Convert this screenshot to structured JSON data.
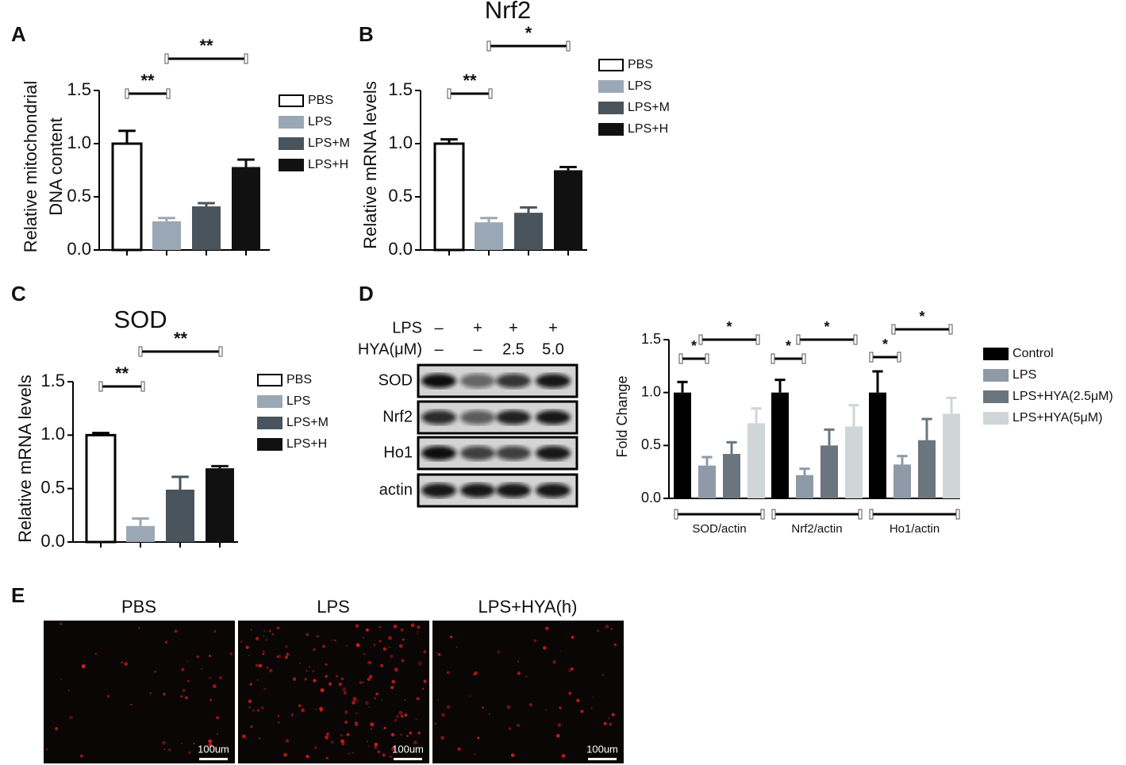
{
  "chart_data": [
    {
      "type": "bar",
      "panel": "A",
      "ylabel": [
        "Relative mitochondrial",
        "DNA content"
      ],
      "categories": [
        null
      ],
      "series": [
        {
          "name": "PBS",
          "color": "#ffffff",
          "values": [
            1.0
          ],
          "errors": [
            0.12
          ]
        },
        {
          "name": "LPS",
          "color": "#9aa8b5",
          "values": [
            0.27
          ],
          "errors": [
            0.03
          ]
        },
        {
          "name": "LPS+M",
          "color": "#4a545c",
          "values": [
            0.41
          ],
          "errors": [
            0.03
          ]
        },
        {
          "name": "LPS+H",
          "color": "#111111",
          "values": [
            0.78
          ],
          "errors": [
            0.07
          ]
        }
      ],
      "ylim": [
        0,
        1.5
      ],
      "yticks": [
        {
          "value": 0,
          "label": "0.0"
        },
        0.5,
        {
          "value": 1,
          "label": "1.0"
        },
        1.5
      ],
      "annotations": [
        "**",
        "**"
      ]
    },
    {
      "type": "bar",
      "panel": "B",
      "title": "Nrf2",
      "ylabel": [
        "Relative mRNA levels"
      ],
      "categories": [
        null
      ],
      "series": [
        {
          "name": "PBS",
          "color": "#ffffff",
          "values": [
            1.0
          ],
          "errors": [
            0.04
          ]
        },
        {
          "name": "LPS",
          "color": "#9aa8b5",
          "values": [
            0.26
          ],
          "errors": [
            0.04
          ]
        },
        {
          "name": "LPS+M",
          "color": "#4a545c",
          "values": [
            0.35
          ],
          "errors": [
            0.05
          ]
        },
        {
          "name": "LPS+H",
          "color": "#111111",
          "values": [
            0.75
          ],
          "errors": [
            0.03
          ]
        }
      ],
      "ylim": [
        0,
        1.5
      ],
      "yticks": [
        {
          "value": 0,
          "label": "0.0"
        },
        0.5,
        {
          "value": 1,
          "label": "1.0"
        },
        1.5
      ],
      "annotations": [
        "**",
        "*"
      ]
    },
    {
      "type": "bar",
      "panel": "C",
      "title": "SOD",
      "ylabel": [
        "Relative mRNA levels"
      ],
      "categories": [
        null
      ],
      "series": [
        {
          "name": "PBS",
          "color": "#ffffff",
          "values": [
            1.0
          ],
          "errors": [
            0.02
          ]
        },
        {
          "name": "LPS",
          "color": "#9aa8b5",
          "values": [
            0.15
          ],
          "errors": [
            0.07
          ]
        },
        {
          "name": "LPS+M",
          "color": "#4a545c",
          "values": [
            0.49
          ],
          "errors": [
            0.12
          ]
        },
        {
          "name": "LPS+H",
          "color": "#111111",
          "values": [
            0.69
          ],
          "errors": [
            0.02
          ]
        }
      ],
      "ylim": [
        0,
        1.5
      ],
      "yticks": [
        {
          "value": 0,
          "label": "0.0"
        },
        0.5,
        {
          "value": 1,
          "label": "1.0"
        },
        1.5
      ],
      "annotations": [
        "**",
        "**"
      ]
    },
    {
      "type": "bar",
      "ylabel": [
        "Fold Change"
      ],
      "categories": [
        "SOD/actin",
        "Nrf2/actin",
        "Ho1/actin"
      ],
      "series": [
        {
          "name": "Control",
          "color": "#000000",
          "values": [
            1.0,
            1.0,
            1.0
          ],
          "errors": [
            0.1,
            0.12,
            0.2
          ]
        },
        {
          "name": "LPS",
          "color": "#8e9aa8",
          "values": [
            0.31,
            0.22,
            0.32
          ],
          "errors": [
            0.08,
            0.06,
            0.08
          ]
        },
        {
          "name": "LPS+HYA(2.5μM)",
          "color": "#6b757d",
          "values": [
            0.42,
            0.5,
            0.55
          ],
          "errors": [
            0.11,
            0.15,
            0.2
          ]
        },
        {
          "name": "LPS+HYA(5μM)",
          "color": "#cfd6d8",
          "values": [
            0.71,
            0.68,
            0.8
          ],
          "errors": [
            0.14,
            0.2,
            0.15
          ]
        }
      ],
      "ylim": [
        0,
        1.5
      ],
      "yticks": [
        {
          "value": 0,
          "label": "0.0"
        },
        0.5,
        {
          "value": 1,
          "label": "1.0"
        },
        1.5
      ],
      "annotations": [
        "*",
        "*",
        "*",
        "*",
        "*",
        "*"
      ]
    }
  ],
  "western_blot": {
    "panel": "D",
    "treatments": [
      {
        "label": "LPS",
        "lanes": [
          "–",
          "+",
          "+",
          "+"
        ]
      },
      {
        "label": "HYA(μM)",
        "lanes": [
          "–",
          "–",
          "2.5",
          "5.0"
        ]
      }
    ],
    "bands": [
      "SOD",
      "Nrf2",
      "Ho1",
      "actin"
    ]
  },
  "micrographs": {
    "panel": "E",
    "titles": [
      "PBS",
      "LPS",
      "LPS+HYA(h)"
    ],
    "scale_bar": "100um"
  }
}
